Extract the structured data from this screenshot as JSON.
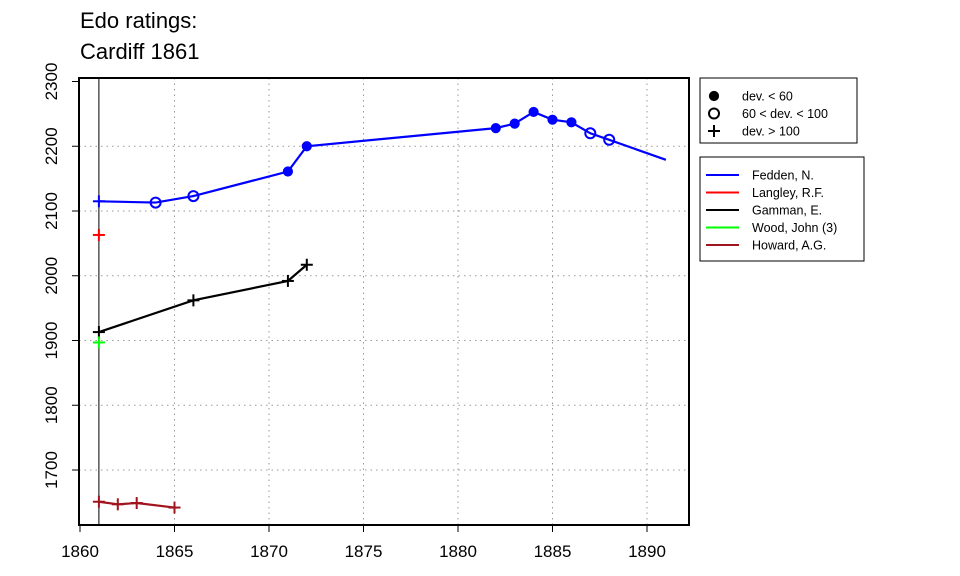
{
  "chart_data": {
    "type": "line",
    "title_lines": [
      "Edo ratings:",
      "Cardiff 1861"
    ],
    "xlabel": "",
    "ylabel": "",
    "xlim": [
      1860,
      1892
    ],
    "ylim": [
      1627,
      2300
    ],
    "x_ticks": [
      1860,
      1865,
      1870,
      1875,
      1880,
      1885,
      1890
    ],
    "y_ticks": [
      1700,
      1800,
      1900,
      2000,
      2100,
      2200,
      2300
    ],
    "grid": "dotted",
    "reference_line_x": 1861,
    "symbol_legend": [
      {
        "marker": "filled-circle",
        "label": "dev. < 60"
      },
      {
        "marker": "open-circle",
        "label": "60 < dev. < 100"
      },
      {
        "marker": "plus",
        "label": "dev. > 100"
      }
    ],
    "series": [
      {
        "name": "Fedden, N.",
        "color": "#0000ff",
        "points": [
          {
            "x": 1861,
            "y": 2115,
            "marker": "plus"
          },
          {
            "x": 1864,
            "y": 2113,
            "marker": "open-circle"
          },
          {
            "x": 1866,
            "y": 2123,
            "marker": "open-circle"
          },
          {
            "x": 1871,
            "y": 2161,
            "marker": "filled-circle"
          },
          {
            "x": 1872,
            "y": 2200,
            "marker": "filled-circle"
          },
          {
            "x": 1882,
            "y": 2228,
            "marker": "filled-circle"
          },
          {
            "x": 1883,
            "y": 2235,
            "marker": "filled-circle"
          },
          {
            "x": 1884,
            "y": 2253,
            "marker": "filled-circle"
          },
          {
            "x": 1885,
            "y": 2241,
            "marker": "filled-circle"
          },
          {
            "x": 1886,
            "y": 2237,
            "marker": "filled-circle"
          },
          {
            "x": 1887,
            "y": 2220,
            "marker": "open-circle"
          },
          {
            "x": 1888,
            "y": 2210,
            "marker": "open-circle"
          },
          {
            "x": 1891,
            "y": 2179,
            "marker": "none"
          }
        ]
      },
      {
        "name": "Langley, R.F.",
        "color": "#ff0000",
        "points": [
          {
            "x": 1861,
            "y": 2063,
            "marker": "plus"
          }
        ]
      },
      {
        "name": "Gamman, E.",
        "color": "#000000",
        "points": [
          {
            "x": 1861,
            "y": 1913,
            "marker": "plus"
          },
          {
            "x": 1866,
            "y": 1962,
            "marker": "plus"
          },
          {
            "x": 1871,
            "y": 1992,
            "marker": "plus"
          },
          {
            "x": 1872,
            "y": 2017,
            "marker": "plus"
          }
        ]
      },
      {
        "name": "Wood, John (3)",
        "color": "#00ff00",
        "points": [
          {
            "x": 1861,
            "y": 1897,
            "marker": "plus"
          }
        ]
      },
      {
        "name": "Howard, A.G.",
        "color": "#a0141e",
        "points": [
          {
            "x": 1861,
            "y": 1651,
            "marker": "plus"
          },
          {
            "x": 1862,
            "y": 1647,
            "marker": "plus"
          },
          {
            "x": 1863,
            "y": 1649,
            "marker": "plus"
          },
          {
            "x": 1865,
            "y": 1642,
            "marker": "plus"
          }
        ]
      }
    ]
  }
}
